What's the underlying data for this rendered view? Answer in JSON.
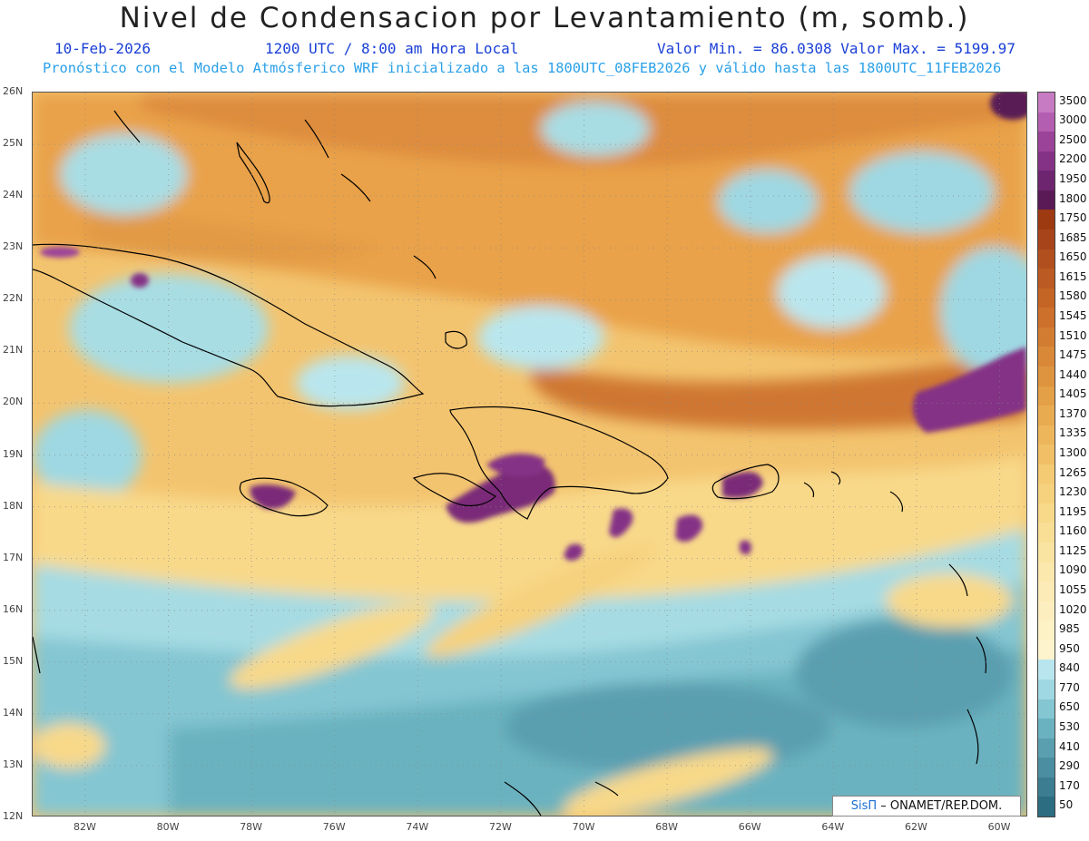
{
  "title": "Nivel de Condensacion por Levantamiento (m, somb.)",
  "header": {
    "date": "10-Feb-2026",
    "time": "1200 UTC / 8:00 am Hora Local",
    "stats": "Valor Min. = 86.0308  Valor Max. = 5199.97",
    "model_info": "Pronóstico con el Modelo Atmósferico WRF inicializado a las 1800UTC_08FEB2026 y válido hasta las  1800UTC_11FEB2026"
  },
  "map": {
    "lat_labels": [
      "26N",
      "25N",
      "24N",
      "23N",
      "22N",
      "21N",
      "20N",
      "19N",
      "18N",
      "17N",
      "16N",
      "15N",
      "14N",
      "13N",
      "12N"
    ],
    "lon_labels": [
      "82W",
      "80W",
      "78W",
      "76W",
      "74W",
      "72W",
      "70W",
      "68W",
      "66W",
      "64W",
      "62W",
      "60W"
    ],
    "grid": true
  },
  "legend": {
    "levels": [
      "3500",
      "3000",
      "2500",
      "2200",
      "1950",
      "1800",
      "1750",
      "1685",
      "1650",
      "1615",
      "1580",
      "1545",
      "1510",
      "1475",
      "1440",
      "1405",
      "1370",
      "1335",
      "1300",
      "1265",
      "1230",
      "1195",
      "1160",
      "1125",
      "1090",
      "1055",
      "1020",
      "985",
      "950",
      "840",
      "770",
      "650",
      "530",
      "410",
      "290",
      "170",
      "50"
    ],
    "colors": [
      "#c77bc2",
      "#b35eb0",
      "#9b4399",
      "#843286",
      "#6e2570",
      "#5a1a55",
      "#9e3a12",
      "#a8441a",
      "#b24f1e",
      "#bb5a22",
      "#c46526",
      "#cc702b",
      "#d27c32",
      "#d98838",
      "#de943f",
      "#e3a046",
      "#e8ab50",
      "#edb65b",
      "#f1c066",
      "#f4ca72",
      "#f6d27e",
      "#f8d98a",
      "#f9df96",
      "#faE4a2",
      "#fbe8ad",
      "#fcebb6",
      "#fceebf",
      "#fdf1c6",
      "#fdf3cd",
      "#b9e6ee",
      "#9fd8e2",
      "#84c6d2",
      "#6bb2c0",
      "#5a9fb0",
      "#4b8ea1",
      "#3c7d92",
      "#2c6d82"
    ]
  },
  "credit": {
    "brand": "SisΠ",
    "text": "– ONAMET/REP.DOM."
  }
}
